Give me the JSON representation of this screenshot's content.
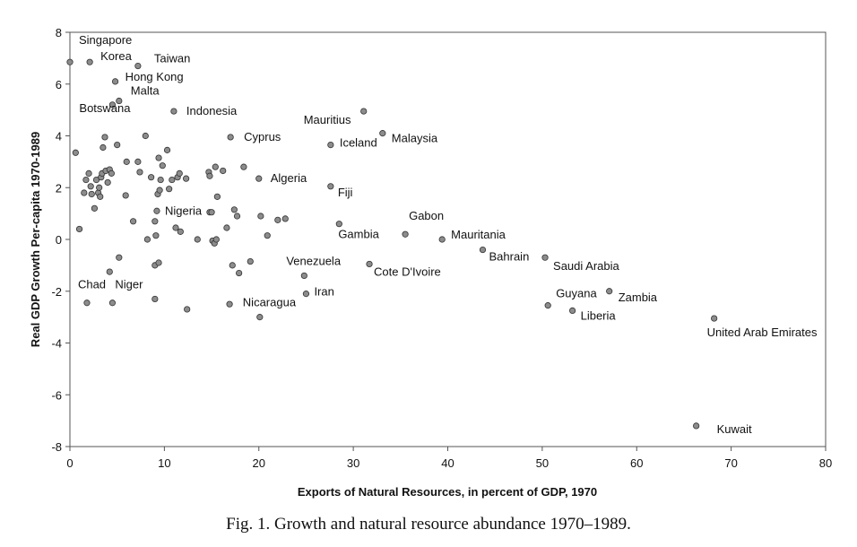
{
  "chart_data": {
    "type": "scatter",
    "caption": "Fig. 1.  Growth and natural resource abundance 1970–1989.",
    "xlabel": "Exports of Natural Resources, in percent of GDP, 1970",
    "ylabel": "Real GDP Growth Per-capita 1970-1989",
    "xlim": [
      0,
      80
    ],
    "ylim": [
      -8,
      8
    ],
    "xticks": [
      0,
      10,
      20,
      30,
      40,
      50,
      60,
      70,
      80
    ],
    "yticks": [
      -8,
      -6,
      -4,
      -2,
      0,
      2,
      4,
      6,
      8
    ],
    "grid": false,
    "colors": {
      "point_fill": "#8c8c8c",
      "point_stroke": "#333333"
    },
    "points": [
      {
        "x": 0.0,
        "y": 6.85,
        "label": "Singapore"
      },
      {
        "x": 2.1,
        "y": 6.85,
        "label": "Korea"
      },
      {
        "x": 7.2,
        "y": 6.7,
        "label": "Taiwan"
      },
      {
        "x": 4.8,
        "y": 6.1,
        "label": "Hong Kong"
      },
      {
        "x": 5.2,
        "y": 5.35,
        "label": "Malta"
      },
      {
        "x": 4.5,
        "y": 5.2,
        "label": "Botswana"
      },
      {
        "x": 11.0,
        "y": 4.95,
        "label": "Indonesia"
      },
      {
        "x": 31.1,
        "y": 4.95,
        "label": "Mauritius"
      },
      {
        "x": 17.0,
        "y": 3.95,
        "label": "Cyprus"
      },
      {
        "x": 33.1,
        "y": 4.1,
        "label": "Malaysia"
      },
      {
        "x": 27.6,
        "y": 3.65,
        "label": "Iceland"
      },
      {
        "x": 27.6,
        "y": 2.05,
        "label": "Fiji"
      },
      {
        "x": 20.0,
        "y": 2.35,
        "label": "Algeria"
      },
      {
        "x": 14.8,
        "y": 1.05,
        "label": "Nigeria"
      },
      {
        "x": 35.5,
        "y": 0.2,
        "label": "Gabon"
      },
      {
        "x": 28.5,
        "y": 0.6,
        "label": "Gambia"
      },
      {
        "x": 39.4,
        "y": 0.0,
        "label": "Mauritania"
      },
      {
        "x": 43.7,
        "y": -0.4,
        "label": "Bahrain"
      },
      {
        "x": 50.3,
        "y": -0.7,
        "label": "Saudi Arabia"
      },
      {
        "x": 31.7,
        "y": -0.95,
        "label": "Cote D'Ivoire"
      },
      {
        "x": 24.8,
        "y": -1.4,
        "label": "Venezuela"
      },
      {
        "x": 25.0,
        "y": -2.1,
        "label": "Iran"
      },
      {
        "x": 20.1,
        "y": -3.0,
        "label": "Nicaragua"
      },
      {
        "x": 1.8,
        "y": -2.45,
        "label": "Chad"
      },
      {
        "x": 4.5,
        "y": -2.45,
        "label": "Niger"
      },
      {
        "x": 57.1,
        "y": -2.0,
        "label": "Zambia"
      },
      {
        "x": 50.6,
        "y": -2.55,
        "label": "Guyana"
      },
      {
        "x": 53.2,
        "y": -2.75,
        "label": "Liberia"
      },
      {
        "x": 68.2,
        "y": -3.05,
        "label": "United Arab Emirates"
      },
      {
        "x": 66.3,
        "y": -7.2,
        "label": "Kuwait"
      },
      {
        "x": 0.6,
        "y": 3.35,
        "label": ""
      },
      {
        "x": 1.0,
        "y": 0.4,
        "label": ""
      },
      {
        "x": 1.5,
        "y": 1.8,
        "label": ""
      },
      {
        "x": 1.7,
        "y": 2.3,
        "label": ""
      },
      {
        "x": 2.0,
        "y": 2.55,
        "label": ""
      },
      {
        "x": 2.2,
        "y": 2.05,
        "label": ""
      },
      {
        "x": 2.3,
        "y": 1.75,
        "label": ""
      },
      {
        "x": 2.6,
        "y": 1.2,
        "label": ""
      },
      {
        "x": 2.8,
        "y": 2.3,
        "label": ""
      },
      {
        "x": 3.0,
        "y": 1.8,
        "label": ""
      },
      {
        "x": 3.1,
        "y": 2.0,
        "label": ""
      },
      {
        "x": 3.2,
        "y": 1.65,
        "label": ""
      },
      {
        "x": 3.3,
        "y": 2.4,
        "label": ""
      },
      {
        "x": 3.4,
        "y": 2.55,
        "label": ""
      },
      {
        "x": 3.5,
        "y": 3.55,
        "label": ""
      },
      {
        "x": 3.7,
        "y": 3.95,
        "label": ""
      },
      {
        "x": 3.8,
        "y": 2.65,
        "label": ""
      },
      {
        "x": 4.0,
        "y": 2.2,
        "label": ""
      },
      {
        "x": 4.2,
        "y": 2.7,
        "label": ""
      },
      {
        "x": 4.4,
        "y": 2.55,
        "label": ""
      },
      {
        "x": 4.2,
        "y": -1.25,
        "label": ""
      },
      {
        "x": 5.0,
        "y": 3.65,
        "label": ""
      },
      {
        "x": 5.2,
        "y": -0.7,
        "label": ""
      },
      {
        "x": 5.9,
        "y": 1.7,
        "label": ""
      },
      {
        "x": 6.0,
        "y": 3.0,
        "label": ""
      },
      {
        "x": 6.7,
        "y": 0.7,
        "label": ""
      },
      {
        "x": 7.2,
        "y": 3.0,
        "label": ""
      },
      {
        "x": 7.4,
        "y": 2.6,
        "label": ""
      },
      {
        "x": 8.0,
        "y": 4.0,
        "label": ""
      },
      {
        "x": 8.2,
        "y": 0.0,
        "label": ""
      },
      {
        "x": 8.6,
        "y": 2.4,
        "label": ""
      },
      {
        "x": 9.0,
        "y": 0.7,
        "label": ""
      },
      {
        "x": 9.1,
        "y": 0.15,
        "label": ""
      },
      {
        "x": 9.2,
        "y": 1.1,
        "label": ""
      },
      {
        "x": 9.3,
        "y": 1.75,
        "label": ""
      },
      {
        "x": 9.4,
        "y": 3.15,
        "label": ""
      },
      {
        "x": 9.5,
        "y": 1.9,
        "label": ""
      },
      {
        "x": 9.6,
        "y": 2.3,
        "label": ""
      },
      {
        "x": 9.8,
        "y": 2.85,
        "label": ""
      },
      {
        "x": 9.0,
        "y": -1.0,
        "label": ""
      },
      {
        "x": 9.4,
        "y": -0.9,
        "label": ""
      },
      {
        "x": 9.0,
        "y": -2.3,
        "label": ""
      },
      {
        "x": 10.3,
        "y": 3.45,
        "label": ""
      },
      {
        "x": 10.5,
        "y": 1.95,
        "label": ""
      },
      {
        "x": 10.8,
        "y": 2.3,
        "label": ""
      },
      {
        "x": 11.2,
        "y": 0.45,
        "label": ""
      },
      {
        "x": 11.4,
        "y": 2.4,
        "label": ""
      },
      {
        "x": 11.6,
        "y": 2.55,
        "label": ""
      },
      {
        "x": 11.7,
        "y": 0.3,
        "label": ""
      },
      {
        "x": 12.3,
        "y": 2.35,
        "label": ""
      },
      {
        "x": 12.4,
        "y": -2.7,
        "label": ""
      },
      {
        "x": 13.5,
        "y": 0.0,
        "label": ""
      },
      {
        "x": 14.7,
        "y": 2.6,
        "label": ""
      },
      {
        "x": 14.8,
        "y": 2.45,
        "label": ""
      },
      {
        "x": 15.1,
        "y": -0.05,
        "label": ""
      },
      {
        "x": 15.3,
        "y": -0.15,
        "label": ""
      },
      {
        "x": 15.5,
        "y": 0.0,
        "label": ""
      },
      {
        "x": 15.4,
        "y": 2.8,
        "label": ""
      },
      {
        "x": 15.6,
        "y": 1.65,
        "label": ""
      },
      {
        "x": 15.0,
        "y": 1.05,
        "label": ""
      },
      {
        "x": 16.2,
        "y": 2.65,
        "label": ""
      },
      {
        "x": 16.6,
        "y": 0.45,
        "label": ""
      },
      {
        "x": 17.2,
        "y": -1.0,
        "label": ""
      },
      {
        "x": 17.4,
        "y": 1.15,
        "label": ""
      },
      {
        "x": 17.7,
        "y": 0.9,
        "label": ""
      },
      {
        "x": 17.9,
        "y": -1.3,
        "label": ""
      },
      {
        "x": 16.9,
        "y": -2.5,
        "label": ""
      },
      {
        "x": 18.4,
        "y": 2.8,
        "label": ""
      },
      {
        "x": 19.1,
        "y": -0.85,
        "label": ""
      },
      {
        "x": 20.2,
        "y": 0.9,
        "label": ""
      },
      {
        "x": 20.9,
        "y": 0.15,
        "label": ""
      },
      {
        "x": 22.0,
        "y": 0.75,
        "label": ""
      },
      {
        "x": 22.8,
        "y": 0.8,
        "label": ""
      }
    ],
    "label_offsets_note": ""
  }
}
